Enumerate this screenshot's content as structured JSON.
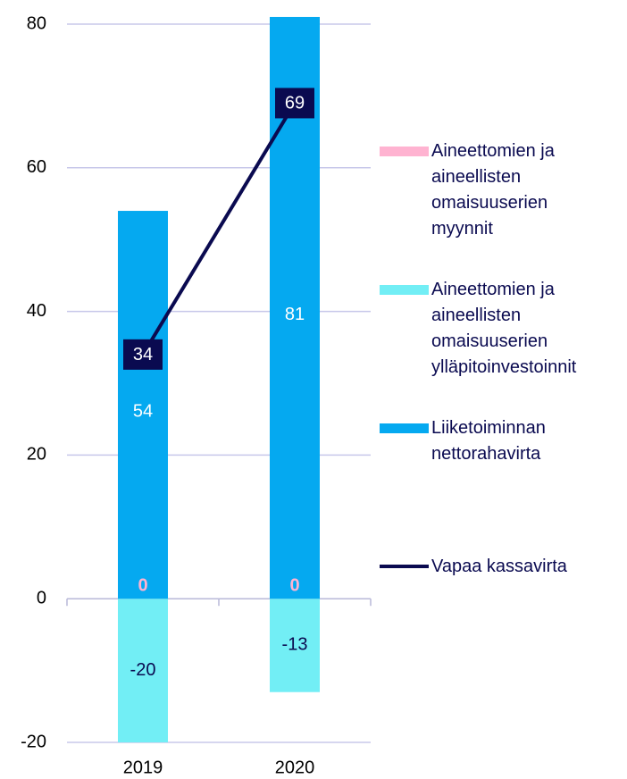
{
  "chart_data": {
    "type": "bar",
    "categories": [
      "2019",
      "2020"
    ],
    "series": [
      {
        "name": "Aineettomien ja aineellisten omaisuuserien myynnit",
        "color": "#ffb3d1",
        "values": [
          0,
          0
        ]
      },
      {
        "name": "Aineettomien ja aineellisten omaisuuserien ylläpitoinvestoinnit",
        "color": "#72eef5",
        "values": [
          -20,
          -13
        ]
      },
      {
        "name": "Liiketoiminnan nettorahavirta",
        "color": "#05a9f0",
        "values": [
          54,
          81
        ]
      },
      {
        "name": "Vapaa kassavirta",
        "color": "#0a0a50",
        "type": "line",
        "values": [
          34,
          69
        ]
      }
    ],
    "ylim": [
      -20,
      80
    ],
    "yticks": [
      -20,
      0,
      20,
      40,
      60,
      80
    ],
    "grid": true,
    "legend": "right"
  }
}
